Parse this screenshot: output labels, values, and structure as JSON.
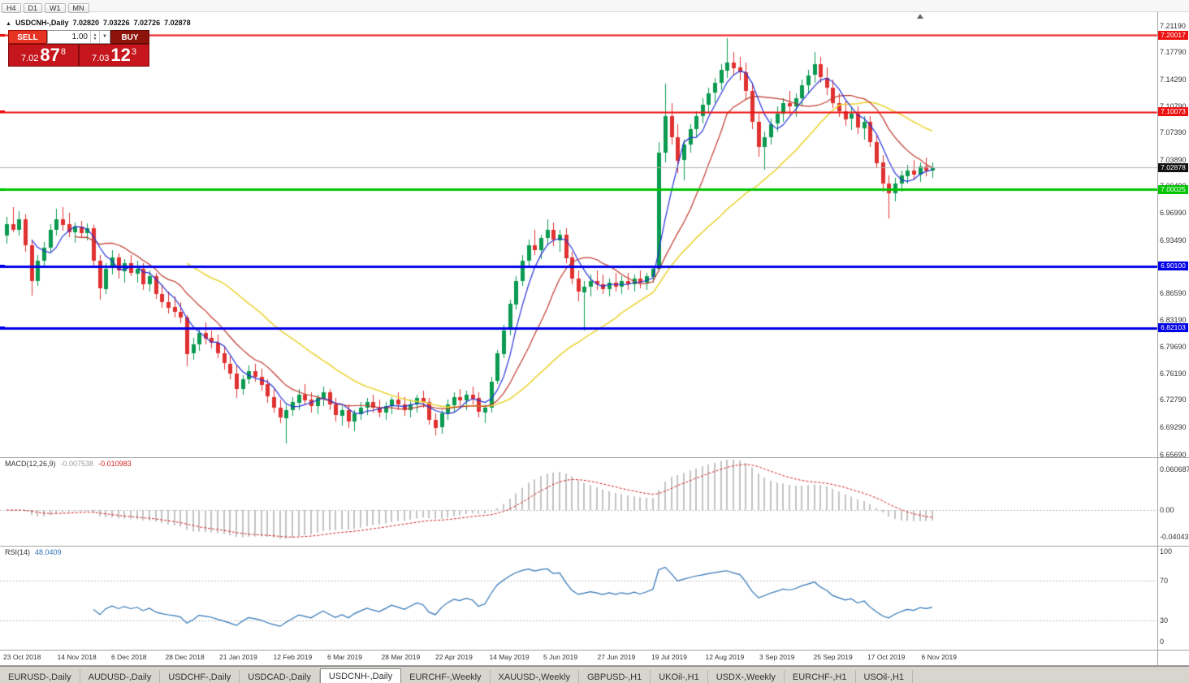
{
  "app": {
    "timeframes": [
      "H4",
      "D1",
      "W1",
      "MN"
    ]
  },
  "chart": {
    "title": "USDCNH-,Daily",
    "ohlc": {
      "open": "7.02820",
      "high": "7.03226",
      "low": "7.02726",
      "close": "7.02878"
    },
    "trade": {
      "sell_label": "SELL",
      "buy_label": "BUY",
      "volume": "1.00",
      "sell_price_prefix": "7.02",
      "sell_price_big": "87",
      "sell_price_sup": "8",
      "buy_price_prefix": "7.03",
      "buy_price_big": "12",
      "buy_price_sup": "3"
    },
    "y_axis": {
      "max": 7.2119,
      "min": 6.6569,
      "labels": [
        "7.21190",
        "7.17790",
        "7.14290",
        "7.10790",
        "7.07390",
        "7.03890",
        "7.00490",
        "6.96990",
        "6.93490",
        "6.90090",
        "6.86590",
        "6.83190",
        "6.79690",
        "6.76190",
        "6.72790",
        "6.69290",
        "6.65690"
      ]
    },
    "x_axis": [
      "23 Oct 2018",
      "14 Nov 2018",
      "6 Dec 2018",
      "28 Dec 2018",
      "21 Jan 2019",
      "12 Feb 2019",
      "6 Mar 2019",
      "28 Mar 2019",
      "22 Apr 2019",
      "14 May 2019",
      "5 Jun 2019",
      "27 Jun 2019",
      "19 Jul 2019",
      "12 Aug 2019",
      "3 Sep 2019",
      "25 Sep 2019",
      "17 Oct 2019",
      "6 Nov 2019"
    ],
    "levels": [
      {
        "price": 7.20017,
        "label": "7.20017",
        "color": "#ee1111",
        "width": 2
      },
      {
        "price": 7.10073,
        "label": "7.10073",
        "color": "#ee1111",
        "width": 2
      },
      {
        "price": 7.00025,
        "label": "7.00025",
        "color": "#00c400",
        "width": 3
      },
      {
        "price": 6.901,
        "label": "6.90100",
        "color": "#0000e6",
        "width": 3
      },
      {
        "price": 6.82103,
        "label": "6.82103",
        "color": "#0000e6",
        "width": 3
      }
    ],
    "current": {
      "price": 7.02878,
      "label": "7.02878"
    }
  },
  "macd": {
    "label": "MACD(12,26,9)",
    "value_macd": "-0.007538",
    "value_signal": "-0.010983",
    "axis_labels": [
      "0.060687",
      "0.00",
      "-0.040437"
    ]
  },
  "rsi": {
    "label": "RSI(14)",
    "value": "48.0409",
    "axis_labels": [
      "100",
      "70",
      "30",
      "0"
    ],
    "levels": [
      70,
      30
    ]
  },
  "tabs": [
    {
      "label": "EURUSD-,Daily",
      "active": false
    },
    {
      "label": "AUDUSD-,Daily",
      "active": false
    },
    {
      "label": "USDCHF-,Daily",
      "active": false
    },
    {
      "label": "USDCAD-,Daily",
      "active": false
    },
    {
      "label": "USDCNH-,Daily",
      "active": true
    },
    {
      "label": "EURCHF-,Weekly",
      "active": false
    },
    {
      "label": "XAUUSD-,Weekly",
      "active": false
    },
    {
      "label": "GBPUSD-,H1",
      "active": false
    },
    {
      "label": "UKOil-,H1",
      "active": false
    },
    {
      "label": "USDX-,Weekly",
      "active": false
    },
    {
      "label": "EURCHF-,H1",
      "active": false
    },
    {
      "label": "USOil-,H1",
      "active": false
    }
  ],
  "colors": {
    "candle_up": "#0a9a50",
    "candle_down": "#e03030",
    "ma_fast": "#2633d8",
    "ma_mid": "#c0392b",
    "ma_slow": "#ecd43a",
    "macd_hist": "#c2c2c2",
    "macd_signal": "#d42020",
    "rsi_line": "#2e74b5",
    "bid_line": "#b0b0b0"
  },
  "chart_data": {
    "type": "candlestick",
    "symbol": "USDCNH-",
    "timeframe": "Daily",
    "moving_averages": [
      {
        "period": 5
      },
      {
        "period": 12
      },
      {
        "period": 30
      }
    ],
    "indicators": {
      "macd": {
        "fast": 12,
        "slow": 26,
        "signal": 9
      },
      "rsi": {
        "period": 14
      }
    },
    "candles": [
      [
        6.94,
        6.965,
        6.93,
        6.955
      ],
      [
        6.955,
        6.978,
        6.945,
        6.948
      ],
      [
        6.948,
        6.972,
        6.94,
        6.962
      ],
      [
        6.962,
        6.968,
        6.92,
        6.928
      ],
      [
        6.928,
        6.935,
        6.862,
        6.882
      ],
      [
        6.882,
        6.915,
        6.875,
        6.908
      ],
      [
        6.908,
        6.932,
        6.9,
        6.925
      ],
      [
        6.925,
        6.955,
        6.918,
        6.948
      ],
      [
        6.948,
        6.975,
        6.94,
        6.962
      ],
      [
        6.962,
        6.978,
        6.948,
        6.955
      ],
      [
        6.955,
        6.97,
        6.938,
        6.945
      ],
      [
        6.945,
        6.958,
        6.932,
        6.952
      ],
      [
        6.952,
        6.96,
        6.938,
        6.944
      ],
      [
        6.944,
        6.956,
        6.934,
        6.95
      ],
      [
        6.95,
        6.954,
        6.9,
        6.908
      ],
      [
        6.908,
        6.915,
        6.857,
        6.872
      ],
      [
        6.872,
        6.905,
        6.865,
        6.898
      ],
      [
        6.898,
        6.922,
        6.89,
        6.912
      ],
      [
        6.912,
        6.918,
        6.885,
        6.895
      ],
      [
        6.895,
        6.91,
        6.88,
        6.905
      ],
      [
        6.905,
        6.915,
        6.888,
        6.892
      ],
      [
        6.892,
        6.908,
        6.88,
        6.898
      ],
      [
        6.898,
        6.905,
        6.87,
        6.878
      ],
      [
        6.878,
        6.895,
        6.868,
        6.888
      ],
      [
        6.888,
        6.892,
        6.858,
        6.865
      ],
      [
        6.865,
        6.878,
        6.848,
        6.855
      ],
      [
        6.855,
        6.868,
        6.84,
        6.848
      ],
      [
        6.848,
        6.862,
        6.835,
        6.842
      ],
      [
        6.842,
        6.855,
        6.828,
        6.835
      ],
      [
        6.835,
        6.838,
        6.772,
        6.788
      ],
      [
        6.788,
        6.808,
        6.78,
        6.8
      ],
      [
        6.8,
        6.822,
        6.792,
        6.815
      ],
      [
        6.815,
        6.828,
        6.8,
        6.808
      ],
      [
        6.808,
        6.818,
        6.795,
        6.802
      ],
      [
        6.802,
        6.812,
        6.782,
        6.788
      ],
      [
        6.788,
        6.798,
        6.768,
        6.775
      ],
      [
        6.775,
        6.785,
        6.755,
        6.762
      ],
      [
        6.762,
        6.772,
        6.73,
        6.742
      ],
      [
        6.742,
        6.76,
        6.735,
        6.755
      ],
      [
        6.755,
        6.772,
        6.748,
        6.765
      ],
      [
        6.765,
        6.775,
        6.752,
        6.758
      ],
      [
        6.758,
        6.768,
        6.74,
        6.748
      ],
      [
        6.748,
        6.755,
        6.725,
        6.732
      ],
      [
        6.732,
        6.742,
        6.712,
        6.718
      ],
      [
        6.718,
        6.728,
        6.698,
        6.705
      ],
      [
        6.705,
        6.722,
        6.672,
        6.715
      ],
      [
        6.715,
        6.732,
        6.708,
        6.725
      ],
      [
        6.725,
        6.742,
        6.715,
        6.735
      ],
      [
        6.735,
        6.748,
        6.722,
        6.728
      ],
      [
        6.728,
        6.738,
        6.712,
        6.72
      ],
      [
        6.72,
        6.735,
        6.71,
        6.73
      ],
      [
        6.73,
        6.745,
        6.72,
        6.738
      ],
      [
        6.738,
        6.742,
        6.715,
        6.722
      ],
      [
        6.722,
        6.73,
        6.7,
        6.708
      ],
      [
        6.708,
        6.72,
        6.695,
        6.715
      ],
      [
        6.715,
        6.722,
        6.692,
        6.7
      ],
      [
        6.7,
        6.715,
        6.688,
        6.71
      ],
      [
        6.71,
        6.725,
        6.702,
        6.718
      ],
      [
        6.718,
        6.73,
        6.708,
        6.725
      ],
      [
        6.725,
        6.735,
        6.712,
        6.718
      ],
      [
        6.718,
        6.728,
        6.705,
        6.712
      ],
      [
        6.712,
        6.725,
        6.702,
        6.72
      ],
      [
        6.72,
        6.732,
        6.71,
        6.728
      ],
      [
        6.728,
        6.738,
        6.715,
        6.722
      ],
      [
        6.722,
        6.732,
        6.708,
        6.715
      ],
      [
        6.715,
        6.728,
        6.705,
        6.722
      ],
      [
        6.722,
        6.735,
        6.712,
        6.73
      ],
      [
        6.73,
        6.74,
        6.718,
        6.725
      ],
      [
        6.725,
        6.73,
        6.695,
        6.702
      ],
      [
        6.702,
        6.71,
        6.682,
        6.692
      ],
      [
        6.692,
        6.715,
        6.685,
        6.71
      ],
      [
        6.71,
        6.728,
        6.702,
        6.722
      ],
      [
        6.722,
        6.738,
        6.712,
        6.732
      ],
      [
        6.732,
        6.742,
        6.72,
        6.728
      ],
      [
        6.728,
        6.74,
        6.715,
        6.735
      ],
      [
        6.735,
        6.745,
        6.722,
        6.73
      ],
      [
        6.73,
        6.738,
        6.705,
        6.712
      ],
      [
        6.712,
        6.722,
        6.698,
        6.718
      ],
      [
        6.718,
        6.758,
        6.712,
        6.752
      ],
      [
        6.752,
        6.792,
        6.748,
        6.788
      ],
      [
        6.788,
        6.825,
        6.782,
        6.818
      ],
      [
        6.818,
        6.858,
        6.812,
        6.852
      ],
      [
        6.852,
        6.888,
        6.845,
        6.882
      ],
      [
        6.882,
        6.915,
        6.875,
        6.908
      ],
      [
        6.908,
        6.935,
        6.898,
        6.928
      ],
      [
        6.928,
        6.948,
        6.915,
        6.922
      ],
      [
        6.922,
        6.942,
        6.91,
        6.938
      ],
      [
        6.938,
        6.962,
        6.928,
        6.948
      ],
      [
        6.948,
        6.958,
        6.928,
        6.935
      ],
      [
        6.935,
        6.948,
        6.92,
        6.942
      ],
      [
        6.942,
        6.95,
        6.905,
        6.912
      ],
      [
        6.912,
        6.92,
        6.878,
        6.885
      ],
      [
        6.885,
        6.895,
        6.855,
        6.868
      ],
      [
        6.868,
        6.882,
        6.818,
        6.875
      ],
      [
        6.875,
        6.89,
        6.862,
        6.882
      ],
      [
        6.882,
        6.895,
        6.87,
        6.878
      ],
      [
        6.878,
        6.89,
        6.865,
        6.872
      ],
      [
        6.872,
        6.885,
        6.862,
        6.88
      ],
      [
        6.88,
        6.892,
        6.868,
        6.875
      ],
      [
        6.875,
        6.888,
        6.865,
        6.882
      ],
      [
        6.882,
        6.892,
        6.87,
        6.878
      ],
      [
        6.878,
        6.89,
        6.868,
        6.885
      ],
      [
        6.885,
        6.895,
        6.872,
        6.88
      ],
      [
        6.88,
        6.892,
        6.87,
        6.888
      ],
      [
        6.888,
        6.902,
        6.88,
        6.898
      ],
      [
        6.898,
        7.062,
        6.895,
        7.048
      ],
      [
        7.048,
        7.137,
        7.035,
        7.095
      ],
      [
        7.095,
        7.112,
        7.058,
        7.068
      ],
      [
        7.068,
        7.085,
        7.022,
        7.038
      ],
      [
        7.038,
        7.065,
        7.012,
        7.058
      ],
      [
        7.058,
        7.085,
        7.048,
        7.078
      ],
      [
        7.078,
        7.102,
        7.068,
        7.095
      ],
      [
        7.095,
        7.118,
        7.085,
        7.11
      ],
      [
        7.11,
        7.132,
        7.098,
        7.125
      ],
      [
        7.125,
        7.145,
        7.112,
        7.138
      ],
      [
        7.138,
        7.162,
        7.128,
        7.155
      ],
      [
        7.155,
        7.196,
        7.145,
        7.165
      ],
      [
        7.165,
        7.178,
        7.148,
        7.158
      ],
      [
        7.158,
        7.172,
        7.142,
        7.152
      ],
      [
        7.152,
        7.165,
        7.118,
        7.128
      ],
      [
        7.128,
        7.138,
        7.078,
        7.088
      ],
      [
        7.088,
        7.098,
        7.042,
        7.055
      ],
      [
        7.055,
        7.075,
        7.026,
        7.068
      ],
      [
        7.068,
        7.092,
        7.058,
        7.085
      ],
      [
        7.085,
        7.108,
        7.075,
        7.098
      ],
      [
        7.098,
        7.118,
        7.088,
        7.112
      ],
      [
        7.112,
        7.128,
        7.098,
        7.108
      ],
      [
        7.108,
        7.125,
        7.095,
        7.118
      ],
      [
        7.118,
        7.142,
        7.108,
        7.135
      ],
      [
        7.135,
        7.155,
        7.125,
        7.148
      ],
      [
        7.148,
        7.178,
        7.138,
        7.162
      ],
      [
        7.162,
        7.172,
        7.138,
        7.145
      ],
      [
        7.145,
        7.158,
        7.122,
        7.132
      ],
      [
        7.132,
        7.142,
        7.105,
        7.112
      ],
      [
        7.112,
        7.125,
        7.095,
        7.102
      ],
      [
        7.102,
        7.115,
        7.082,
        7.092
      ],
      [
        7.092,
        7.108,
        7.078,
        7.098
      ],
      [
        7.098,
        7.108,
        7.072,
        7.08
      ],
      [
        7.08,
        7.095,
        7.065,
        7.088
      ],
      [
        7.088,
        7.095,
        7.055,
        7.062
      ],
      [
        7.062,
        7.072,
        7.028,
        7.035
      ],
      [
        7.035,
        7.045,
        6.998,
        7.008
      ],
      [
        7.008,
        7.018,
        6.962,
        6.995
      ],
      [
        6.995,
        7.015,
        6.985,
        7.008
      ],
      [
        7.008,
        7.025,
        6.998,
        7.018
      ],
      [
        7.018,
        7.032,
        7.008,
        7.025
      ],
      [
        7.025,
        7.038,
        7.012,
        7.02
      ],
      [
        7.02,
        7.035,
        7.01,
        7.03
      ],
      [
        7.03,
        7.042,
        7.018,
        7.025
      ],
      [
        7.025,
        7.035,
        7.015,
        7.029
      ]
    ]
  }
}
